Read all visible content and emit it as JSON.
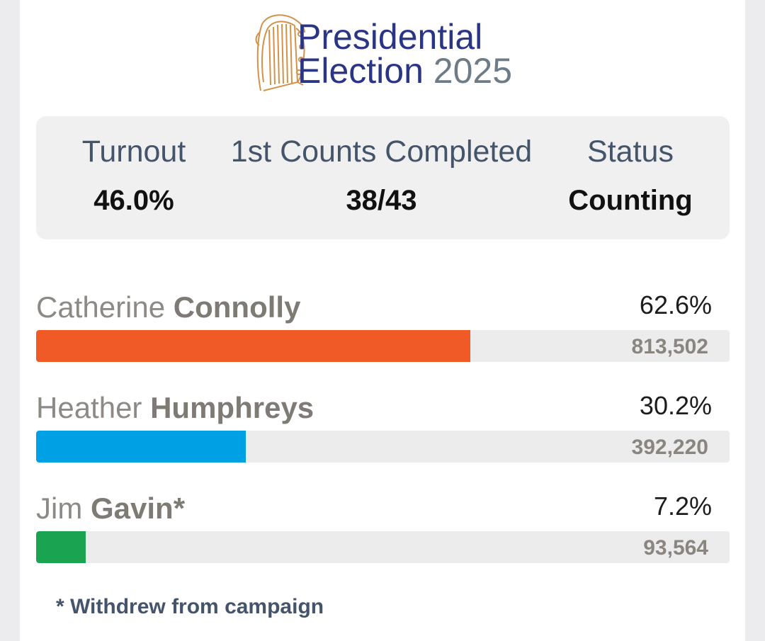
{
  "header": {
    "title_line1": "Presidential",
    "title_line2": "Election",
    "title_year": "2025",
    "logo_icon": "harp-icon"
  },
  "stats": {
    "turnout_label": "Turnout",
    "turnout_value": "46.0%",
    "counts_label": "1st Counts Completed",
    "counts_value": "38/43",
    "status_label": "Status",
    "status_value": "Counting"
  },
  "candidates": [
    {
      "first": "Catherine",
      "last": "Connolly",
      "pct": "62.6%",
      "share": 0.626,
      "votes": "813,502",
      "color": "#f05a27"
    },
    {
      "first": "Heather",
      "last": "Humphreys",
      "pct": "30.2%",
      "share": 0.302,
      "votes": "392,220",
      "color": "#00a0e4"
    },
    {
      "first": "Jim",
      "last": "Gavin*",
      "pct": "7.2%",
      "share": 0.072,
      "votes": "93,564",
      "color": "#1aa351"
    }
  ],
  "footnote": "* Withdrew from campaign"
}
